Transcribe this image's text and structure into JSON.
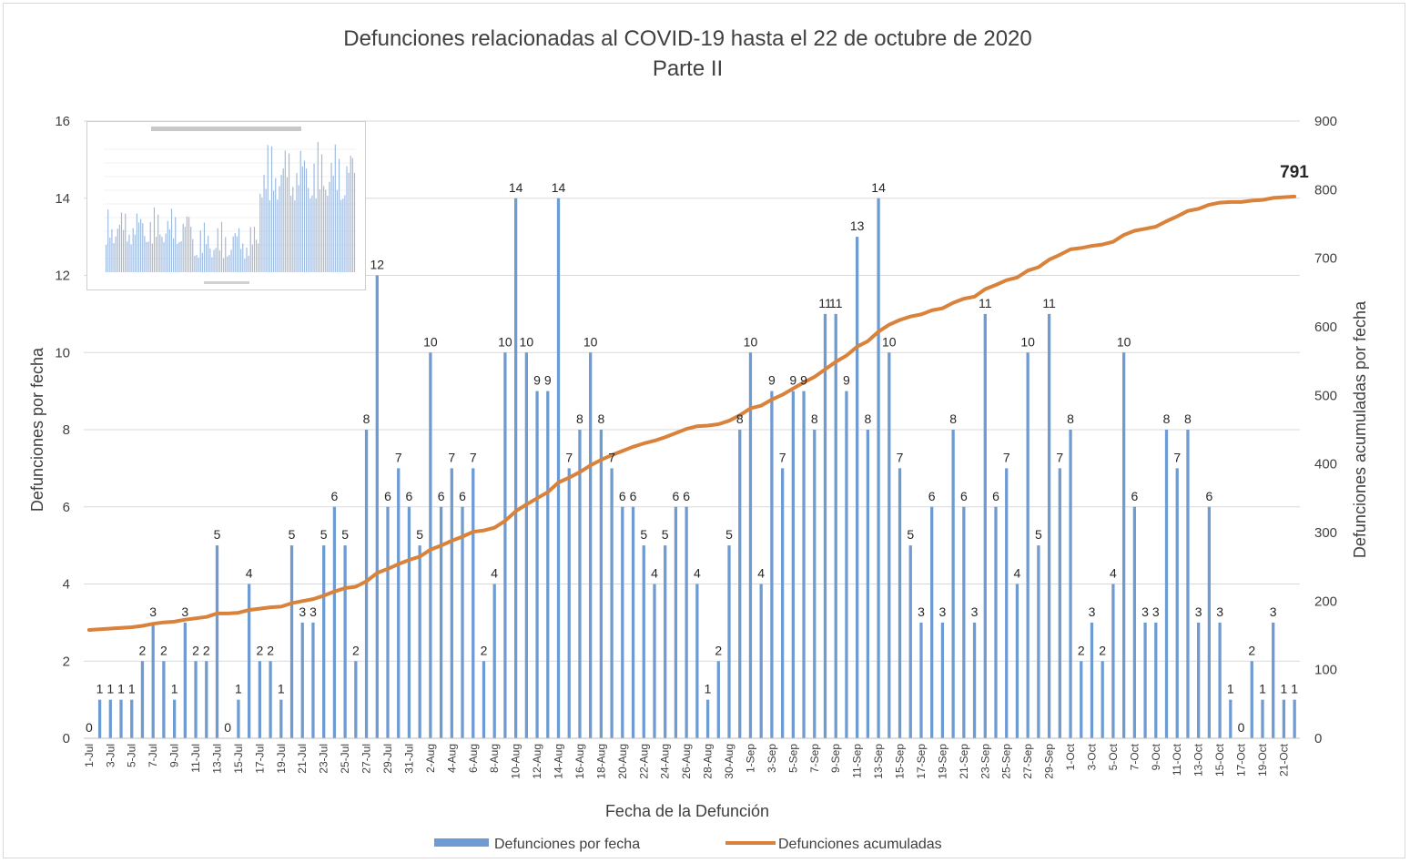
{
  "chart_data": {
    "type": "bar",
    "title": "Defunciones relacionadas al COVID-19 hasta el 22 de octubre de 2020",
    "subtitle": "Parte II",
    "xlabel": "Fecha de la Defunción",
    "ylabel_left": "Defunciones por fecha",
    "ylabel_right": "Defunciones acumuladas por fecha",
    "ylim_left": [
      0,
      16
    ],
    "ylim_right": [
      0,
      900
    ],
    "yticks_left": [
      "0",
      "2",
      "4",
      "6",
      "8",
      "10",
      "12",
      "14",
      "16"
    ],
    "yticks_right": [
      "0",
      "100",
      "200",
      "300",
      "400",
      "500",
      "600",
      "700",
      "800",
      "900"
    ],
    "grid": true,
    "legend_position": "bottom",
    "categories": [
      "1-Jul",
      "2-Jul",
      "3-Jul",
      "4-Jul",
      "5-Jul",
      "6-Jul",
      "7-Jul",
      "8-Jul",
      "9-Jul",
      "10-Jul",
      "11-Jul",
      "12-Jul",
      "13-Jul",
      "14-Jul",
      "15-Jul",
      "16-Jul",
      "17-Jul",
      "18-Jul",
      "19-Jul",
      "20-Jul",
      "21-Jul",
      "22-Jul",
      "23-Jul",
      "24-Jul",
      "25-Jul",
      "26-Jul",
      "27-Jul",
      "28-Jul",
      "29-Jul",
      "30-Jul",
      "31-Jul",
      "1-Aug",
      "2-Aug",
      "3-Aug",
      "4-Aug",
      "5-Aug",
      "6-Aug",
      "7-Aug",
      "8-Aug",
      "9-Aug",
      "10-Aug",
      "11-Aug",
      "12-Aug",
      "13-Aug",
      "14-Aug",
      "15-Aug",
      "16-Aug",
      "17-Aug",
      "18-Aug",
      "19-Aug",
      "20-Aug",
      "21-Aug",
      "22-Aug",
      "23-Aug",
      "24-Aug",
      "25-Aug",
      "26-Aug",
      "27-Aug",
      "28-Aug",
      "29-Aug",
      "30-Aug",
      "31-Aug",
      "1-Sep",
      "2-Sep",
      "3-Sep",
      "4-Sep",
      "5-Sep",
      "6-Sep",
      "7-Sep",
      "8-Sep",
      "9-Sep",
      "10-Sep",
      "11-Sep",
      "12-Sep",
      "13-Sep",
      "14-Sep",
      "15-Sep",
      "16-Sep",
      "17-Sep",
      "18-Sep",
      "19-Sep",
      "20-Sep",
      "21-Sep",
      "22-Sep",
      "23-Sep",
      "24-Sep",
      "25-Sep",
      "26-Sep",
      "27-Sep",
      "28-Sep",
      "29-Sep",
      "30-Sep",
      "1-Oct",
      "2-Oct",
      "3-Oct",
      "4-Oct",
      "5-Oct",
      "6-Oct",
      "7-Oct",
      "8-Oct",
      "9-Oct",
      "10-Oct",
      "11-Oct",
      "12-Oct",
      "13-Oct",
      "14-Oct",
      "15-Oct",
      "16-Oct",
      "17-Oct",
      "18-Oct",
      "19-Oct",
      "20-Oct",
      "21-Oct",
      "22-Oct"
    ],
    "series": [
      {
        "name": "Defunciones por fecha",
        "type": "bar",
        "axis": "left",
        "color": "#6f9bd3",
        "values": [
          0,
          1,
          1,
          1,
          1,
          2,
          3,
          2,
          1,
          3,
          2,
          2,
          5,
          0,
          1,
          4,
          2,
          2,
          1,
          5,
          3,
          3,
          5,
          6,
          5,
          2,
          8,
          12,
          6,
          7,
          6,
          5,
          10,
          6,
          7,
          6,
          7,
          2,
          4,
          10,
          14,
          10,
          9,
          9,
          14,
          7,
          8,
          10,
          8,
          7,
          6,
          6,
          5,
          4,
          5,
          6,
          6,
          4,
          1,
          2,
          5,
          8,
          10,
          4,
          9,
          7,
          9,
          9,
          8,
          11,
          11,
          9,
          13,
          8,
          14,
          10,
          7,
          5,
          3,
          6,
          3,
          8,
          6,
          3,
          11,
          6,
          7,
          4,
          10,
          5,
          11,
          7,
          8,
          2,
          3,
          2,
          4,
          10,
          6,
          3,
          3,
          8,
          7,
          8,
          3,
          6,
          3,
          1,
          0,
          2,
          1,
          3,
          1,
          1
        ]
      },
      {
        "name": "Defunciones acumuladas",
        "type": "line",
        "axis": "right",
        "color": "#d9823b",
        "start_value": 158,
        "final_value_label": "791"
      }
    ]
  }
}
